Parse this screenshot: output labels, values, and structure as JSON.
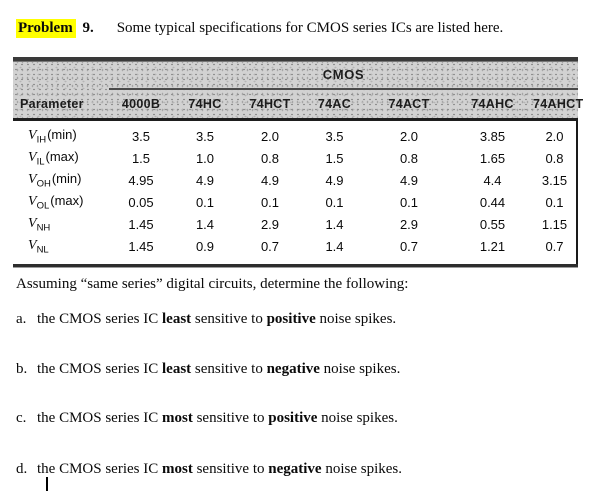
{
  "title": {
    "highlight": "Problem",
    "number": " 9.",
    "text": "Some typical specifications for CMOS series ICs are listed here."
  },
  "table": {
    "group_header": "CMOS",
    "columns": [
      "Parameter",
      "4000B",
      "74HC",
      "74HCT",
      "74AC",
      "74ACT",
      "74AHC",
      "74AHCT"
    ],
    "rows": [
      {
        "v": "V",
        "sub": "IH",
        "suffix": "(min)",
        "values": [
          "3.5",
          "3.5",
          "2.0",
          "3.5",
          "2.0",
          "3.85",
          "2.0"
        ]
      },
      {
        "v": "V",
        "sub": "IL",
        "suffix": "(max)",
        "values": [
          "1.5",
          "1.0",
          "0.8",
          "1.5",
          "0.8",
          "1.65",
          "0.8"
        ]
      },
      {
        "v": "V",
        "sub": "OH",
        "suffix": "(min)",
        "values": [
          "4.95",
          "4.9",
          "4.9",
          "4.9",
          "4.9",
          "4.4",
          "3.15"
        ]
      },
      {
        "v": "V",
        "sub": "OL",
        "suffix": "(max)",
        "values": [
          "0.05",
          "0.1",
          "0.1",
          "0.1",
          "0.1",
          "0.44",
          "0.1"
        ]
      },
      {
        "v": "V",
        "sub": "NH",
        "suffix": "",
        "values": [
          "1.45",
          "1.4",
          "2.9",
          "1.4",
          "2.9",
          "0.55",
          "1.15"
        ]
      },
      {
        "v": "V",
        "sub": "NL",
        "suffix": "",
        "values": [
          "1.45",
          "0.9",
          "0.7",
          "1.4",
          "0.7",
          "1.21",
          "0.7"
        ]
      }
    ]
  },
  "body": {
    "intro": "Assuming “same series” digital circuits, determine the following:",
    "questions": [
      {
        "label": "a.",
        "pre": "the CMOS series IC ",
        "bold1": "least",
        "mid": " sensitive to ",
        "bold2": "positive",
        "post": " noise spikes."
      },
      {
        "label": "b.",
        "pre": "the CMOS series IC ",
        "bold1": "least",
        "mid": " sensitive to ",
        "bold2": "negative",
        "post": " noise spikes."
      },
      {
        "label": "c.",
        "pre": "the CMOS series IC ",
        "bold1": "most",
        "mid": " sensitive to ",
        "bold2": "positive",
        "post": " noise spikes."
      },
      {
        "label": "d.",
        "pre": "the CMOS series IC ",
        "bold1": "most",
        "mid": " sensitive to ",
        "bold2": "negative",
        "post": " noise spikes."
      }
    ]
  },
  "colors": {
    "highlight_yellow": "#ffff00",
    "table_header_gray": "#d2d2d2"
  }
}
